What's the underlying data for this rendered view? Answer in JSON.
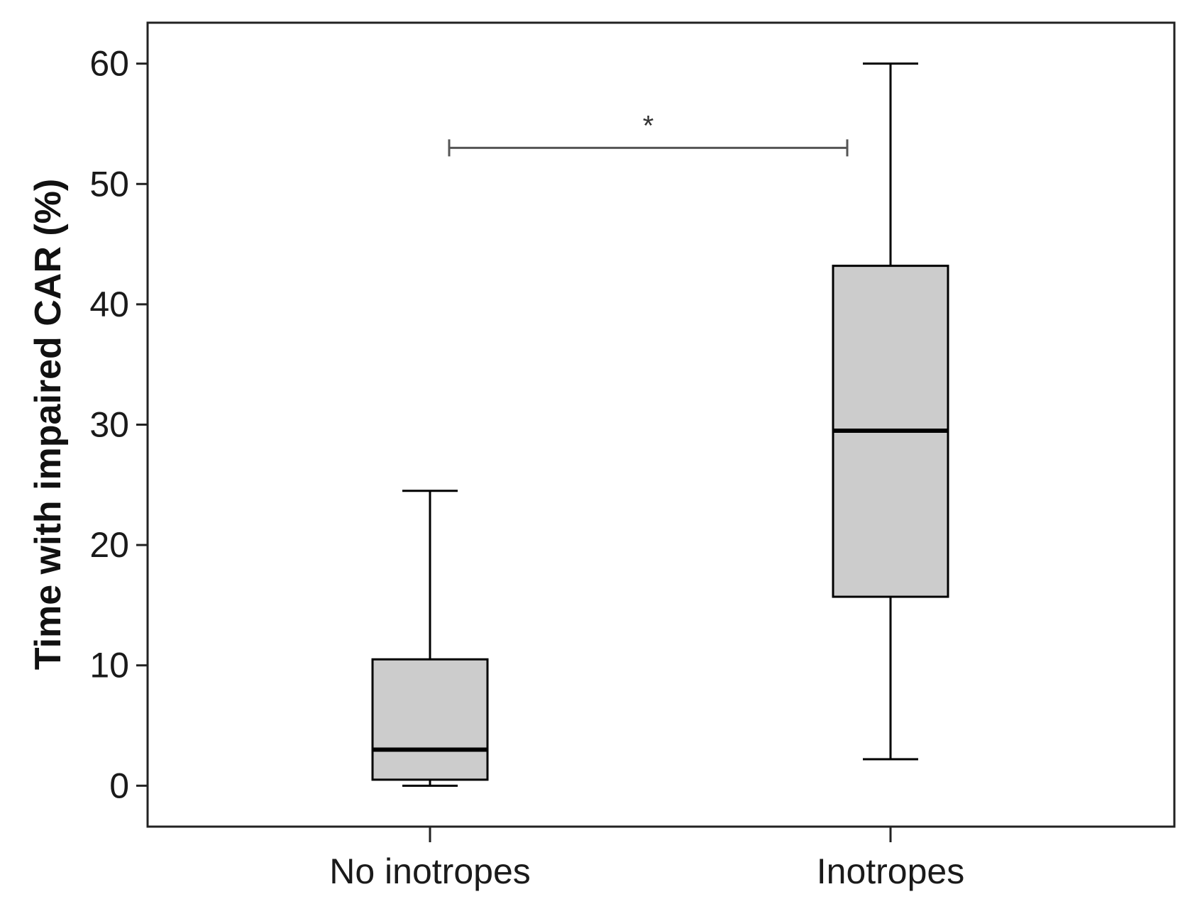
{
  "chart_data": {
    "type": "boxplot",
    "title": "",
    "xlabel": "",
    "ylabel": "Time with impaired CAR (%)",
    "ylim": [
      -3.4,
      63.4
    ],
    "yticks": [
      0,
      10,
      20,
      30,
      40,
      50,
      60
    ],
    "ytick_labels": [
      "0",
      "10",
      "20",
      "30",
      "40",
      "50",
      "60"
    ],
    "grid": false,
    "categories": [
      "No inotropes",
      "Inotropes"
    ],
    "boxes": [
      {
        "category": "No inotropes",
        "whisker_low": 0.0,
        "q1": 0.5,
        "median": 3.0,
        "q3": 10.5,
        "whisker_high": 24.5
      },
      {
        "category": "Inotropes",
        "whisker_low": 2.2,
        "q1": 15.7,
        "median": 29.5,
        "q3": 43.2,
        "whisker_high": 60.0
      }
    ],
    "significance": {
      "from": "No inotropes",
      "to": "Inotropes",
      "y": 53.0,
      "label": "*"
    },
    "colors": {
      "box_fill": "#cccccc",
      "stroke": "#000000",
      "bracket": "#555555"
    }
  }
}
